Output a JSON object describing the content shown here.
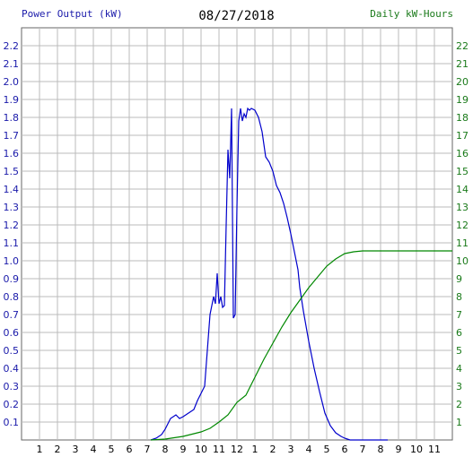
{
  "header": {
    "left_label": "Power Output (kW)",
    "date": "08/27/2018",
    "right_label": "Daily kW-Hours"
  },
  "colors": {
    "power_line": "#0000cc",
    "energy_line": "#008800",
    "grid": "#bbbbbb",
    "left_axis_text": "#1a1aaa",
    "right_axis_text": "#1a7a1a"
  },
  "chart_data": {
    "type": "line",
    "title": "08/27/2018",
    "grid": true,
    "x_tick_labels": [
      "1",
      "2",
      "3",
      "4",
      "5",
      "6",
      "7",
      "8",
      "9",
      "10",
      "11",
      "12",
      "1",
      "2",
      "3",
      "4",
      "5",
      "6",
      "7",
      "8",
      "9",
      "10",
      "11"
    ],
    "x_range_hours": [
      0,
      24
    ],
    "y_left": {
      "label": "Power Output (kW)",
      "range": [
        0,
        2.3
      ],
      "ticks": [
        "0.1",
        "0.2",
        "0.3",
        "0.4",
        "0.5",
        "0.6",
        "0.7",
        "0.8",
        "0.9",
        "1.0",
        "1.1",
        "1.2",
        "1.3",
        "1.4",
        "1.5",
        "1.6",
        "1.7",
        "1.8",
        "1.9",
        "2.0",
        "2.1",
        "2.2"
      ]
    },
    "y_right": {
      "label": "Daily kW-Hours",
      "range": [
        0,
        23
      ],
      "ticks": [
        "1",
        "2",
        "3",
        "4",
        "5",
        "6",
        "7",
        "8",
        "9",
        "10",
        "11",
        "12",
        "13",
        "14",
        "15",
        "16",
        "17",
        "18",
        "19",
        "20",
        "21",
        "22"
      ]
    },
    "series": [
      {
        "name": "Power Output (kW)",
        "axis": "left",
        "x": [
          7.2,
          7.5,
          7.8,
          8.0,
          8.3,
          8.6,
          8.8,
          9.0,
          9.3,
          9.6,
          9.8,
          10.0,
          10.2,
          10.5,
          10.7,
          10.8,
          10.9,
          11.0,
          11.1,
          11.2,
          11.3,
          11.4,
          11.5,
          11.6,
          11.7,
          11.8,
          11.9,
          12.0,
          12.1,
          12.2,
          12.3,
          12.4,
          12.5,
          12.6,
          12.7,
          12.8,
          13.0,
          13.2,
          13.4,
          13.6,
          13.8,
          14.0,
          14.2,
          14.4,
          14.6,
          14.8,
          15.0,
          15.2,
          15.4,
          15.5,
          15.7,
          16.0,
          16.3,
          16.6,
          16.9,
          17.2,
          17.5,
          17.8,
          18.0,
          18.3,
          18.6,
          18.9,
          19.2,
          19.5,
          19.8,
          20.0,
          20.4
        ],
        "y": [
          0.0,
          0.01,
          0.03,
          0.06,
          0.12,
          0.14,
          0.12,
          0.13,
          0.15,
          0.17,
          0.22,
          0.26,
          0.3,
          0.7,
          0.8,
          0.76,
          0.93,
          0.76,
          0.8,
          0.74,
          0.75,
          1.2,
          1.62,
          1.46,
          1.85,
          0.68,
          0.7,
          1.3,
          1.78,
          1.85,
          1.78,
          1.82,
          1.8,
          1.85,
          1.84,
          1.85,
          1.84,
          1.8,
          1.72,
          1.58,
          1.55,
          1.5,
          1.42,
          1.38,
          1.32,
          1.24,
          1.15,
          1.05,
          0.95,
          0.85,
          0.72,
          0.55,
          0.4,
          0.27,
          0.15,
          0.08,
          0.04,
          0.02,
          0.01,
          0.0,
          0.0,
          0.0,
          0.0,
          0.0,
          0.0,
          0.0,
          0.0
        ]
      },
      {
        "name": "Daily kW-Hours",
        "axis": "right",
        "x": [
          7.2,
          8.0,
          9.0,
          10.0,
          10.5,
          11.0,
          11.5,
          12.0,
          12.5,
          13.0,
          13.5,
          14.0,
          14.5,
          15.0,
          15.5,
          16.0,
          16.5,
          17.0,
          17.5,
          18.0,
          18.5,
          19.0,
          19.5,
          20.0,
          21.0,
          22.0,
          23.0,
          24.0
        ],
        "y": [
          0.0,
          0.05,
          0.2,
          0.45,
          0.65,
          1.0,
          1.4,
          2.1,
          2.5,
          3.5,
          4.5,
          5.4,
          6.3,
          7.1,
          7.8,
          8.5,
          9.1,
          9.7,
          10.1,
          10.4,
          10.5,
          10.55,
          10.55,
          10.55,
          10.55,
          10.55,
          10.55,
          10.55
        ]
      }
    ]
  }
}
